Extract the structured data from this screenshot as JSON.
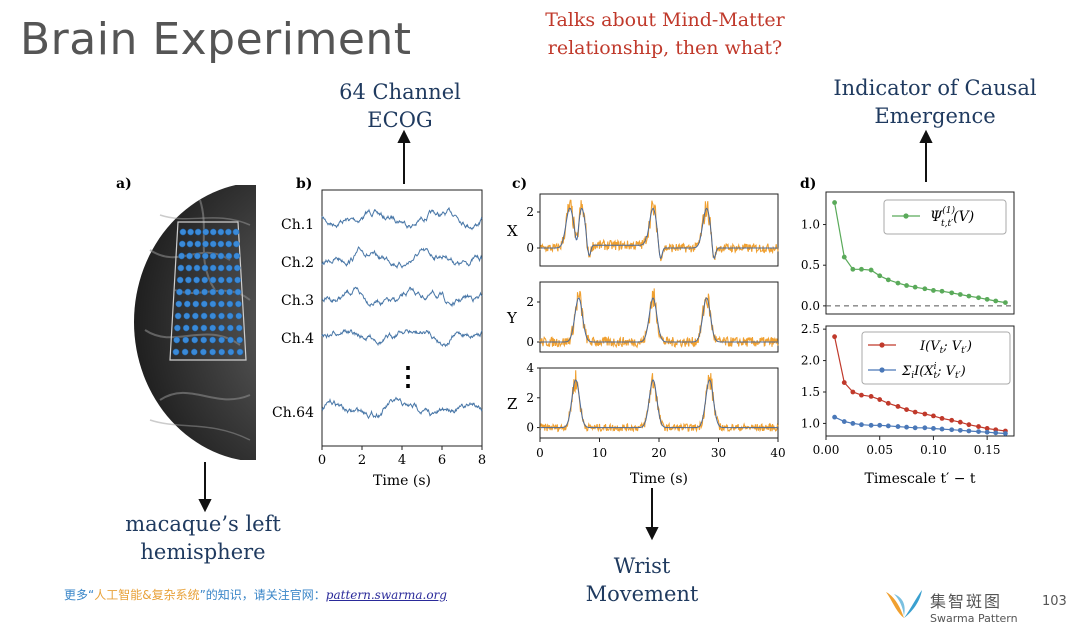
{
  "slide": {
    "title": "Brain Experiment",
    "note": "Talks about Mind-Matter relationship, then what?",
    "callouts": {
      "ecog": "64 Channel ECOG",
      "causal": "Indicator of Causal Emergence",
      "hemisphere": "macaque’s left hemisphere",
      "wrist": "Wrist Movement"
    },
    "panel_labels": [
      "a)",
      "b)",
      "c)",
      "d)"
    ],
    "footer": {
      "prefix": "更多“",
      "middle": "人工智能&复杂系统",
      "suffix": "”的知识，请关注官网：",
      "link": "pattern.swarma.org"
    },
    "logo": {
      "cn": "集智斑图",
      "en": "Swarma Pattern"
    },
    "page_number": "103"
  },
  "colors": {
    "title": "#555555",
    "note": "#c0392b",
    "callout": "#1f3a5f",
    "trace_blue": "#4a78a8",
    "trace_orange": "#f0a030",
    "green": "#5aaa5a",
    "red": "#c0392b",
    "blue": "#4a78b8"
  },
  "chart_data": [
    {
      "id": "b",
      "type": "line",
      "title": "",
      "xlabel": "Time (s)",
      "ylabel": "",
      "xlim": [
        0,
        8
      ],
      "xticks": [
        "0",
        "2",
        "4",
        "6",
        "8"
      ],
      "channels": [
        "Ch.1",
        "Ch.2",
        "Ch.3",
        "Ch.4",
        "Ch.64"
      ],
      "ellipsis": "⋮"
    },
    {
      "id": "c",
      "type": "line",
      "xlabel": "Time (s)",
      "xlim": [
        0,
        40
      ],
      "xticks": [
        "0",
        "10",
        "20",
        "30",
        "40"
      ],
      "axes": [
        {
          "label": "X",
          "yticks": [
            "2",
            "0"
          ],
          "ylim": [
            -1,
            3
          ],
          "peaks": [
            5,
            7,
            19,
            28
          ]
        },
        {
          "label": "Y",
          "yticks": [
            "2",
            "0"
          ],
          "ylim": [
            -0.5,
            3
          ],
          "peaks": [
            6.5,
            19,
            28
          ]
        },
        {
          "label": "Z",
          "yticks": [
            "4",
            "2",
            "0"
          ],
          "ylim": [
            -0.7,
            4
          ],
          "peaks": [
            6,
            19,
            28.5
          ]
        }
      ]
    },
    {
      "id": "d_top",
      "type": "line",
      "ylim": [
        -0.1,
        1.4
      ],
      "yticks": [
        "1.0",
        "0.5",
        "0.0"
      ],
      "legend": "Ψ",
      "series": [
        {
          "name": "Psi",
          "x": [
            0.008,
            0.017,
            0.025,
            0.033,
            0.042,
            0.05,
            0.058,
            0.067,
            0.075,
            0.083,
            0.092,
            0.1,
            0.108,
            0.117,
            0.125,
            0.133,
            0.142,
            0.15,
            0.158,
            0.167
          ],
          "y": [
            1.27,
            0.6,
            0.45,
            0.45,
            0.44,
            0.37,
            0.32,
            0.28,
            0.25,
            0.23,
            0.21,
            0.19,
            0.18,
            0.16,
            0.14,
            0.12,
            0.1,
            0.08,
            0.06,
            0.04
          ]
        }
      ]
    },
    {
      "id": "d_bottom",
      "type": "line",
      "xlabel": "Timescale t′ − t",
      "xlim": [
        0,
        0.175
      ],
      "xticks": [
        "0.00",
        "0.05",
        "0.10",
        "0.15"
      ],
      "ylim": [
        0.8,
        2.55
      ],
      "yticks": [
        "2.5",
        "2.0",
        "1.5",
        "1.0"
      ],
      "series": [
        {
          "name": "I(V_t; V_t')",
          "x": [
            0.008,
            0.017,
            0.025,
            0.033,
            0.042,
            0.05,
            0.058,
            0.067,
            0.075,
            0.083,
            0.092,
            0.1,
            0.108,
            0.117,
            0.125,
            0.133,
            0.142,
            0.15,
            0.158,
            0.167
          ],
          "y": [
            2.38,
            1.65,
            1.5,
            1.45,
            1.43,
            1.38,
            1.32,
            1.27,
            1.22,
            1.18,
            1.15,
            1.12,
            1.08,
            1.05,
            1.02,
            0.98,
            0.95,
            0.92,
            0.9,
            0.88
          ]
        },
        {
          "name": "Σ_i I(X_t^i; V_t')",
          "x": [
            0.008,
            0.017,
            0.025,
            0.033,
            0.042,
            0.05,
            0.058,
            0.067,
            0.075,
            0.083,
            0.092,
            0.1,
            0.108,
            0.117,
            0.125,
            0.133,
            0.142,
            0.15,
            0.158,
            0.167
          ],
          "y": [
            1.1,
            1.03,
            1.0,
            0.98,
            0.97,
            0.97,
            0.96,
            0.95,
            0.94,
            0.93,
            0.93,
            0.92,
            0.91,
            0.9,
            0.89,
            0.88,
            0.87,
            0.86,
            0.85,
            0.84
          ]
        }
      ]
    }
  ]
}
